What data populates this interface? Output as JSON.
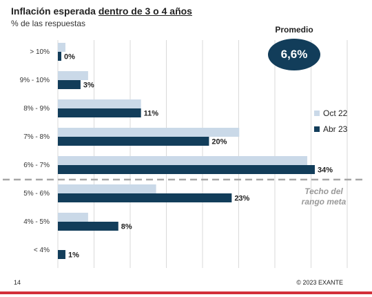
{
  "header": {
    "title_prefix": "Inflación esperada",
    "title_underlined": "dentro de 3 o 4 años",
    "subtitle": "% de las respuestas"
  },
  "average": {
    "label": "Promedio",
    "value": "6,6%"
  },
  "threshold": {
    "note_line1": "Techo del",
    "note_line2": "rango meta"
  },
  "footer": {
    "page_number": "14",
    "copyright": "© 2023 EXANTE"
  },
  "colors": {
    "oct22": "#cad9e8",
    "abr23": "#123d5a",
    "accent_line": "#d32f3a"
  },
  "chart_data": {
    "type": "bar",
    "orientation": "horizontal",
    "title": "Inflación esperada dentro de 3 o 4 años",
    "subtitle": "% de las respuestas",
    "categories": [
      "> 10%",
      "9% - 10%",
      "8% - 9%",
      "7% - 8%",
      "6% - 7%",
      "5% - 6%",
      "4% - 5%",
      "< 4%"
    ],
    "series": [
      {
        "name": "Oct 22",
        "values": [
          1,
          4,
          11,
          24,
          33,
          13,
          4,
          0
        ]
      },
      {
        "name": "Abr 23",
        "values": [
          0,
          3,
          11,
          20,
          34,
          23,
          8,
          1
        ]
      }
    ],
    "data_labels": [
      "0%",
      "3%",
      "11%",
      "20%",
      "34%",
      "23%",
      "8%",
      "1%"
    ],
    "xlim": [
      0,
      40
    ],
    "grid": true,
    "legend": "right"
  }
}
